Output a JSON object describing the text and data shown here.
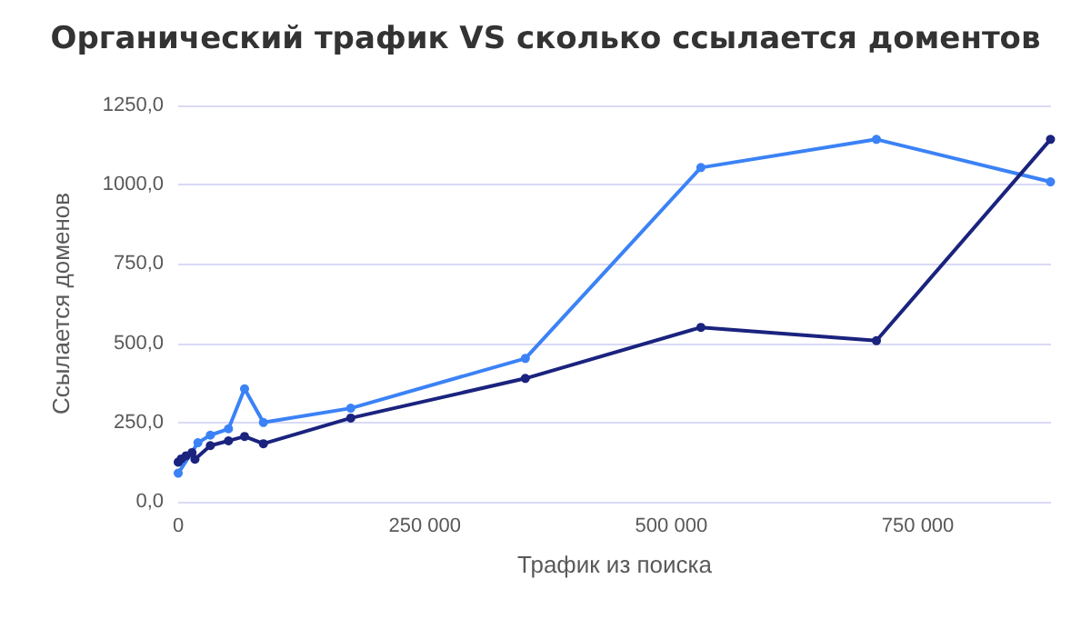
{
  "chart_data": {
    "type": "line",
    "title": "Органический трафик VS сколько ссылается доментов",
    "xlabel": "Трафик из поиска",
    "ylabel": "Ссылается доменов",
    "xlim": [
      0,
      885000
    ],
    "xticks": [
      0,
      {
        "value": 250000,
        "label": "250 000"
      },
      {
        "value": 500000,
        "label": "500 000"
      },
      {
        "value": 750000,
        "label": "750 000"
      }
    ],
    "ylim": [
      0,
      1250
    ],
    "yticks": [
      {
        "value": 0,
        "label": "0,0"
      },
      {
        "value": 250,
        "label": "250,0"
      },
      {
        "value": 500,
        "label": "500,0"
      },
      {
        "value": 750,
        "label": "750,0"
      },
      {
        "value": 1000,
        "label": "1000,0"
      },
      {
        "value": 1250,
        "label": "1250,0"
      }
    ],
    "grid": "y",
    "marker": "circle",
    "line_style": "solid",
    "series": [
      {
        "color": "#3b82f6",
        "x": [
          0,
          20000,
          32600,
          51000,
          67300,
          86400,
          175000,
          352000,
          530000,
          708000,
          884500
        ],
        "values": [
          90,
          186,
          210,
          230,
          356,
          250,
          295,
          452,
          1054,
          1143,
          1009
        ]
      },
      {
        "color": "#1a237e",
        "x": [
          0,
          3000,
          8000,
          14000,
          17000,
          32600,
          51000,
          67300,
          86400,
          175000,
          352000,
          530000,
          708000,
          884500
        ],
        "values": [
          125,
          135,
          145,
          155,
          134,
          177,
          192,
          206,
          183,
          264,
          389,
          550,
          508,
          1143
        ]
      }
    ]
  }
}
